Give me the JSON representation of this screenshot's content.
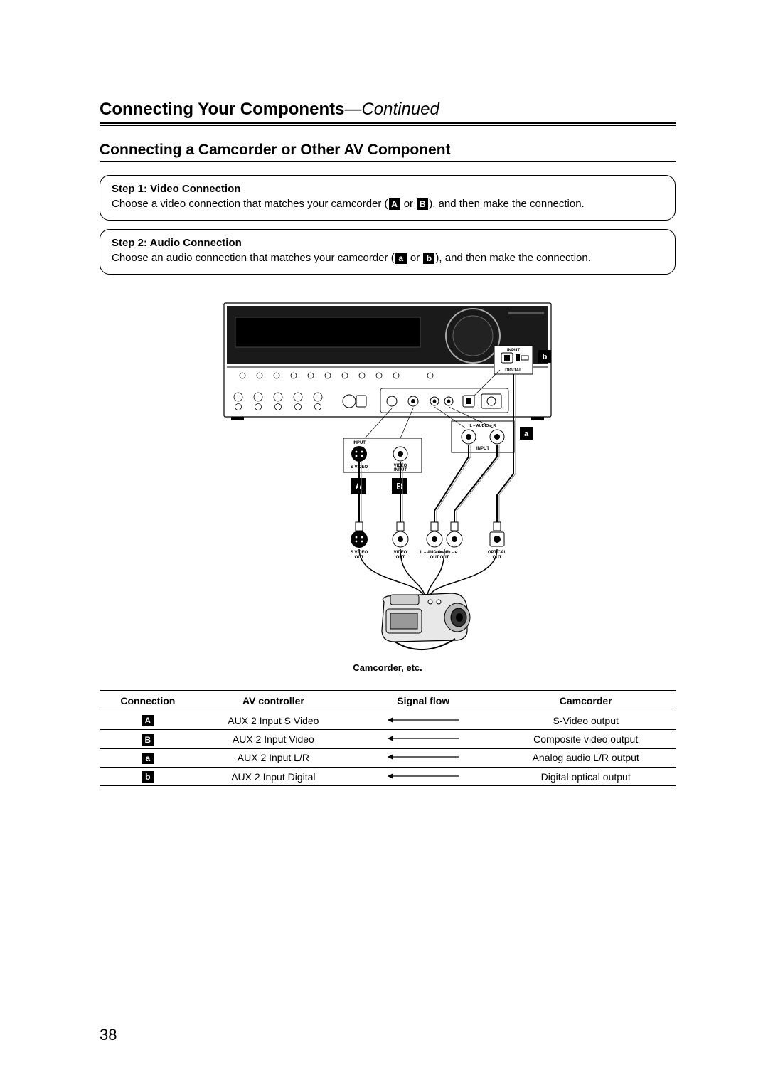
{
  "page": {
    "number": "38",
    "heading_main": "Connecting Your Components",
    "heading_suffix": "—Continued",
    "subheading": "Connecting a Camcorder or Other AV Component"
  },
  "steps": [
    {
      "title": "Step 1: Video Connection",
      "text_before": "Choose a video connection that matches your camcorder (",
      "chip1": "A",
      "mid": " or ",
      "chip2": "B",
      "text_after": "), and then make the connection."
    },
    {
      "title": "Step 2: Audio Connection",
      "text_before": "Choose an audio connection that matches your camcorder (",
      "chip1": "a",
      "mid": " or ",
      "chip2": "b",
      "text_after": "), and then make the connection."
    }
  ],
  "diagram": {
    "labels": {
      "input": "INPUT",
      "digital": "DIGITAL",
      "svideo_in": "S VIDEO",
      "video_in": "VIDEO INPUT",
      "audio_in": "L – AUDIO – R INPUT",
      "svideo_out": "S VIDEO OUT",
      "video_out": "VIDEO OUT",
      "audio_out": "L – AUDIO – R OUT",
      "optical_out": "OPTICAL OUT",
      "A": "A",
      "B": "B",
      "a": "a",
      "b": "b"
    },
    "camcorder_caption": "Camcorder, etc.",
    "colors": {
      "stroke": "#000000",
      "fill_light": "#f5f5f5",
      "fill_dark": "#2b2b2b",
      "bg": "#ffffff"
    }
  },
  "table": {
    "headers": [
      "Connection",
      "AV controller",
      "Signal flow",
      "Camcorder"
    ],
    "rows": [
      {
        "chip": "A",
        "controller": "AUX 2 Input S Video",
        "camcorder": "S-Video output"
      },
      {
        "chip": "B",
        "controller": "AUX 2 Input Video",
        "camcorder": "Composite video output"
      },
      {
        "chip": "a",
        "controller": "AUX 2 Input L/R",
        "camcorder": "Analog audio L/R output"
      },
      {
        "chip": "b",
        "controller": "AUX 2 Input Digital",
        "camcorder": "Digital optical output"
      }
    ]
  }
}
